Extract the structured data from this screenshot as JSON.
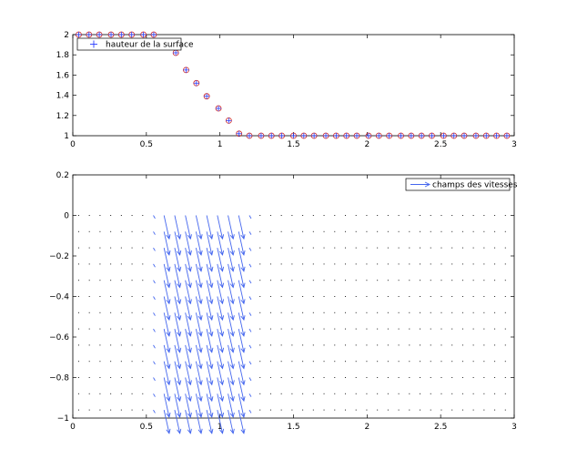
{
  "chart_data": [
    {
      "type": "scatter",
      "title": "",
      "xlabel": "",
      "ylabel": "",
      "xlim": [
        0,
        3
      ],
      "ylim": [
        1,
        2
      ],
      "xticks": [
        0,
        0.5,
        1,
        1.5,
        2,
        2.5,
        3
      ],
      "xtick_labels": [
        "0",
        "0.5",
        "1",
        "1.5",
        "2",
        "2.5",
        "3"
      ],
      "yticks": [
        1,
        1.2,
        1.4,
        1.6,
        1.8,
        2
      ],
      "ytick_labels": [
        "1",
        "1.2",
        "1.4",
        "1.6",
        "1.8",
        "2"
      ],
      "grid": false,
      "legend": {
        "placement": "top-left",
        "entries": [
          "hauteur de la surface"
        ]
      },
      "series": [
        {
          "name": "hauteur de la surface",
          "marker": "plus-in-circle",
          "plus_color": "#2a3cff",
          "circle_color": "#cc2222",
          "x": [
            0.04,
            0.11,
            0.18,
            0.26,
            0.33,
            0.4,
            0.48,
            0.55,
            0.62,
            0.7,
            0.77,
            0.84,
            0.91,
            0.99,
            1.06,
            1.13,
            1.2,
            1.28,
            1.35,
            1.42,
            1.5,
            1.57,
            1.64,
            1.72,
            1.79,
            1.86,
            1.93,
            2.01,
            2.08,
            2.15,
            2.23,
            2.3,
            2.37,
            2.44,
            2.52,
            2.59,
            2.66,
            2.74,
            2.81,
            2.88,
            2.95
          ],
          "y": [
            2.0,
            2.0,
            2.0,
            2.0,
            2.0,
            2.0,
            2.0,
            2.0,
            null,
            1.82,
            1.65,
            1.52,
            1.39,
            1.27,
            1.15,
            1.02,
            1.0,
            1.0,
            1.0,
            1.0,
            1.0,
            1.0,
            1.0,
            1.0,
            1.0,
            1.0,
            1.0,
            1.0,
            1.0,
            1.0,
            1.0,
            1.0,
            1.0,
            1.0,
            1.0,
            1.0,
            1.0,
            1.0,
            1.0,
            1.0,
            1.0
          ]
        }
      ]
    },
    {
      "type": "quiver",
      "title": "",
      "xlabel": "",
      "ylabel": "",
      "xlim": [
        0,
        3
      ],
      "ylim": [
        -1,
        0.2
      ],
      "xticks": [
        0,
        0.5,
        1,
        1.5,
        2,
        2.5,
        3
      ],
      "xtick_labels": [
        "0",
        "0.5",
        "1",
        "1.5",
        "2",
        "2.5",
        "3"
      ],
      "yticks": [
        -1,
        -0.8,
        -0.6,
        -0.4,
        -0.2,
        0,
        0.2
      ],
      "ytick_labels": [
        "−1",
        "−0.8",
        "−0.6",
        "−0.4",
        "−0.2",
        "0",
        "0.2"
      ],
      "grid": false,
      "legend": {
        "placement": "top-right",
        "entries": [
          "champs des vitesses"
        ]
      },
      "arrow_color": "#4466ee",
      "x_start": 0.04,
      "x_step": 0.0725,
      "x_count": 41,
      "y_values": [
        0,
        -0.08,
        -0.16,
        -0.24,
        -0.32,
        -0.4,
        -0.48,
        -0.56,
        -0.64,
        -0.72,
        -0.8,
        -0.88,
        -0.96
      ],
      "velocity_by_column": {
        "u": [
          0,
          0,
          0,
          0,
          0,
          0,
          0,
          0.012,
          0.035,
          0.035,
          0.035,
          0.035,
          0.035,
          0.035,
          0.035,
          0.035,
          0.012
        ],
        "v": [
          0,
          0,
          0,
          0,
          0,
          0,
          0,
          -0.015,
          -0.115,
          -0.115,
          -0.115,
          -0.115,
          -0.115,
          -0.115,
          -0.115,
          -0.115,
          -0.015
        ]
      },
      "series": [
        {
          "name": "champs des vitesses"
        }
      ]
    }
  ]
}
